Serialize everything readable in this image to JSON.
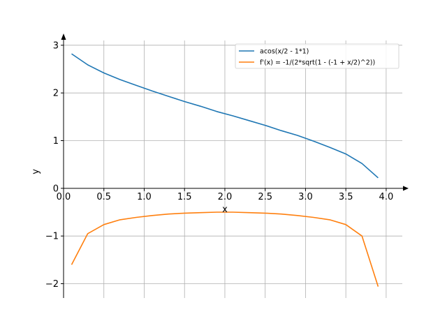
{
  "chart_data": {
    "type": "line",
    "title": "",
    "xlabel": "x",
    "ylabel": "y",
    "xlim": [
      0.0,
      4.2
    ],
    "ylim": [
      -2.3,
      3.1
    ],
    "x_ticks": [
      0.0,
      0.5,
      1.0,
      1.5,
      2.0,
      2.5,
      3.0,
      3.5,
      4.0
    ],
    "x_tick_labels": [
      "0.0",
      "0.5",
      "1.0",
      "1.5",
      "2.0",
      "2.5",
      "3.0",
      "3.5",
      "4.0"
    ],
    "y_ticks": [
      -2,
      -1,
      0,
      1,
      2,
      3
    ],
    "y_tick_labels": [
      "−2",
      "−1",
      "0",
      "1",
      "2",
      "3"
    ],
    "grid": true,
    "legend_position": "top-right",
    "series": [
      {
        "name": "acos(x/2 - 1*1)",
        "color": "#1f77b4",
        "x": [
          0.1,
          0.3,
          0.5,
          0.7,
          0.9,
          1.1,
          1.3,
          1.5,
          1.7,
          1.9,
          2.1,
          2.3,
          2.5,
          2.7,
          2.9,
          3.1,
          3.3,
          3.5,
          3.7,
          3.9
        ],
        "y": [
          2.82,
          2.59,
          2.42,
          2.28,
          2.16,
          2.04,
          1.93,
          1.82,
          1.72,
          1.61,
          1.52,
          1.42,
          1.32,
          1.21,
          1.11,
          0.99,
          0.86,
          0.72,
          0.52,
          0.22
        ]
      },
      {
        "name": "f'(x) = -1/(2*sqrt(1 - (-1 + x/2)^2))",
        "color": "#ff7f0e",
        "x": [
          0.1,
          0.3,
          0.5,
          0.7,
          0.9,
          1.1,
          1.3,
          1.5,
          1.7,
          1.9,
          2.1,
          2.3,
          2.5,
          2.7,
          2.9,
          3.1,
          3.3,
          3.5,
          3.7,
          3.9
        ],
        "y": [
          -1.6,
          -0.95,
          -0.76,
          -0.66,
          -0.61,
          -0.57,
          -0.54,
          -0.52,
          -0.51,
          -0.5,
          -0.5,
          -0.51,
          -0.52,
          -0.54,
          -0.57,
          -0.61,
          -0.66,
          -0.76,
          -1.0,
          -2.06
        ]
      }
    ]
  }
}
